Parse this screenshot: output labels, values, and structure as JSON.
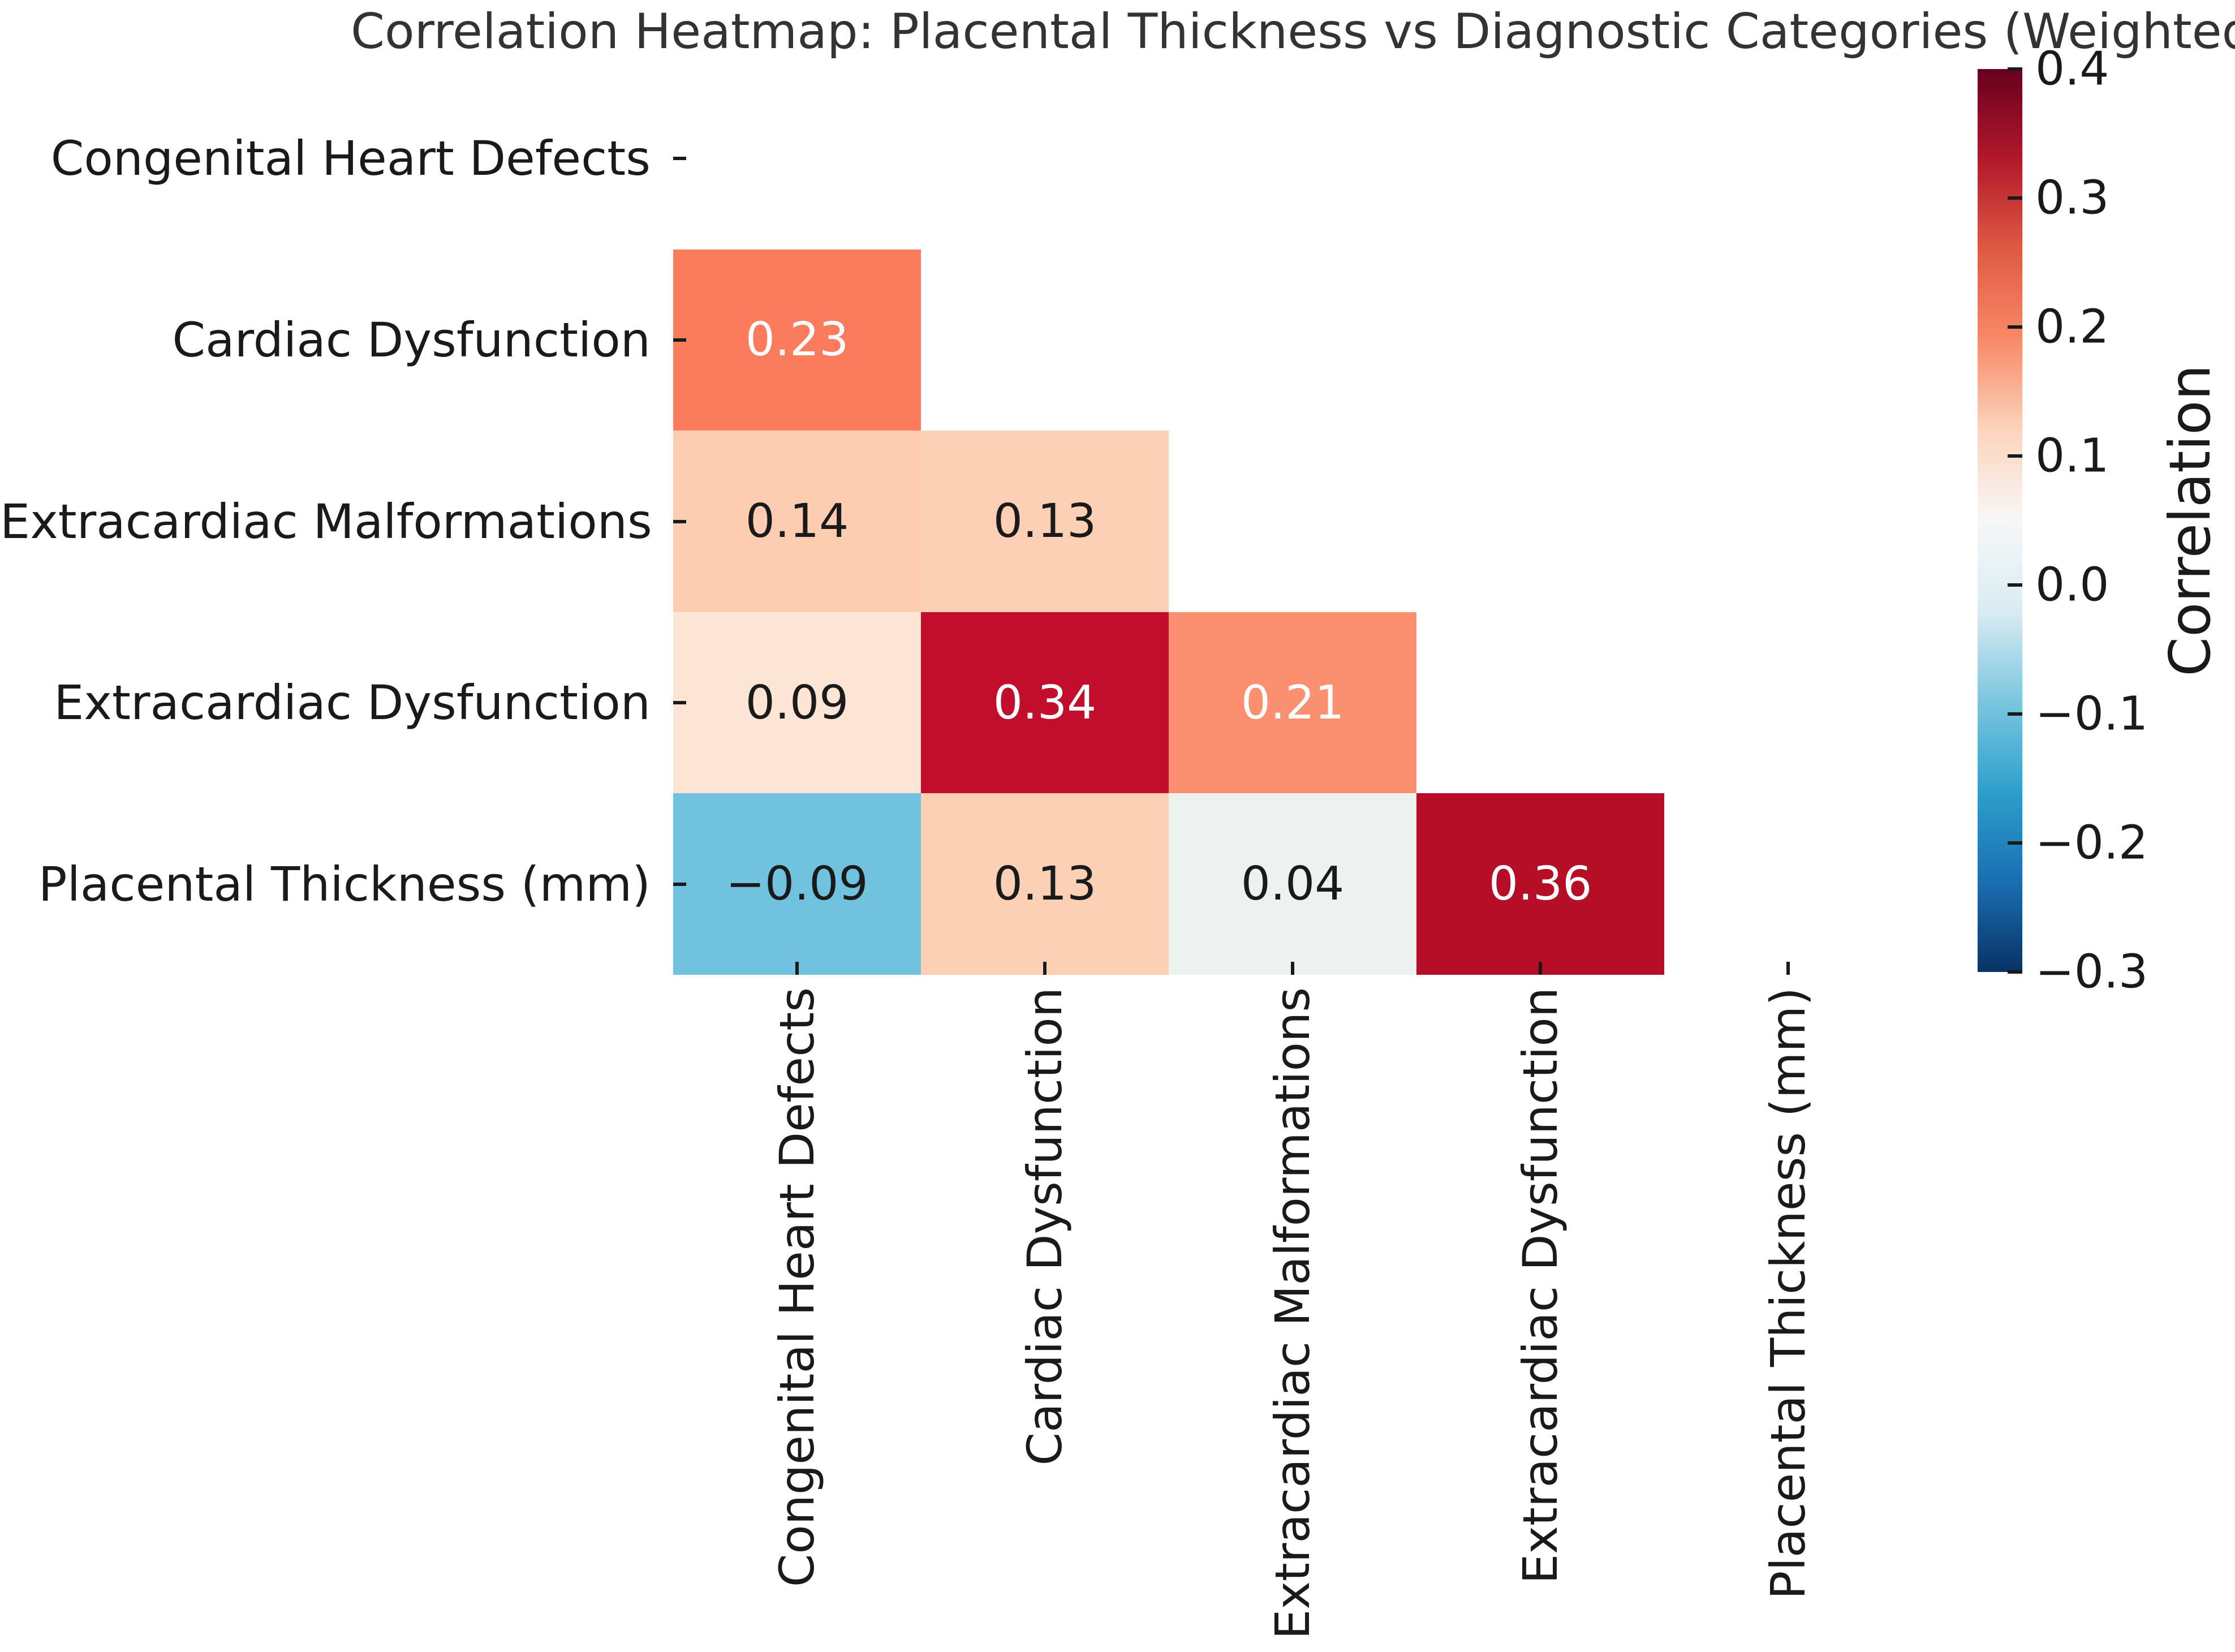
{
  "title": "Correlation Heatmap: Placental Thickness vs Diagnostic Categories (Weighted)",
  "text_color": "#1a1a1a",
  "title_color": "#333333",
  "chart_data": {
    "type": "heatmap",
    "subtype": "correlation-matrix-lower-triangle",
    "title": "Correlation Heatmap: Placental Thickness vs Diagnostic Categories (Weighted)",
    "categories": [
      "Congenital Heart Defects",
      "Cardiac Dysfunction",
      "Extracardiac Malformations",
      "Extracardiac Dysfunction",
      "Placental Thickness (mm)"
    ],
    "matrix_lower_triangle": [
      [
        null,
        null,
        null,
        null,
        null
      ],
      [
        0.23,
        null,
        null,
        null,
        null
      ],
      [
        0.14,
        0.13,
        null,
        null,
        null
      ],
      [
        0.09,
        0.34,
        0.21,
        null,
        null
      ],
      [
        -0.09,
        0.13,
        0.04,
        0.36,
        null
      ]
    ],
    "cells": [
      {
        "row": 1,
        "col": 0,
        "value": 0.23,
        "label": "0.23",
        "bg": "#fa7c5d",
        "fg": "#ffffff"
      },
      {
        "row": 2,
        "col": 0,
        "value": 0.14,
        "label": "0.14",
        "bg": "#fccdb1",
        "fg": "#1a1a1a"
      },
      {
        "row": 2,
        "col": 1,
        "value": 0.13,
        "label": "0.13",
        "bg": "#fcd0b5",
        "fg": "#1a1a1a"
      },
      {
        "row": 3,
        "col": 0,
        "value": 0.09,
        "label": "0.09",
        "bg": "#fde5d6",
        "fg": "#1a1a1a"
      },
      {
        "row": 3,
        "col": 1,
        "value": 0.34,
        "label": "0.34",
        "bg": "#c20e2c",
        "fg": "#ffffff"
      },
      {
        "row": 3,
        "col": 2,
        "value": 0.21,
        "label": "0.21",
        "bg": "#fb9070",
        "fg": "#ffffff"
      },
      {
        "row": 4,
        "col": 0,
        "value": -0.09,
        "label": "−0.09",
        "bg": "#70c2de",
        "fg": "#1a1a1a"
      },
      {
        "row": 4,
        "col": 1,
        "value": 0.13,
        "label": "0.13",
        "bg": "#fcd0b5",
        "fg": "#1a1a1a"
      },
      {
        "row": 4,
        "col": 2,
        "value": 0.04,
        "label": "0.04",
        "bg": "#edf2f1",
        "fg": "#1a1a1a"
      },
      {
        "row": 4,
        "col": 3,
        "value": 0.36,
        "label": "0.36",
        "bg": "#b70e28",
        "fg": "#ffffff"
      }
    ],
    "colorbar": {
      "label": "Correlation",
      "vmin": -0.3,
      "vmax": 0.4,
      "ticks": [
        {
          "label": "0.4",
          "value": 0.4
        },
        {
          "label": "0.3",
          "value": 0.3
        },
        {
          "label": "0.2",
          "value": 0.2
        },
        {
          "label": "0.1",
          "value": 0.1
        },
        {
          "label": "0.0",
          "value": 0.0
        },
        {
          "label": "−0.1",
          "value": -0.1
        },
        {
          "label": "−0.2",
          "value": -0.2
        },
        {
          "label": "−0.3",
          "value": -0.3
        }
      ],
      "gradient_top_to_bottom": [
        "#67001f",
        "#b2182b",
        "#e05a44",
        "#f88a68",
        "#fcd4bc",
        "#f7f7f7",
        "#d9ecf2",
        "#7cc6e0",
        "#2da0cc",
        "#1a6eb2",
        "#083264"
      ]
    },
    "legend_position": "right-colorbar",
    "grid": "off",
    "mask": "diagonal and upper triangle hidden (white)"
  }
}
